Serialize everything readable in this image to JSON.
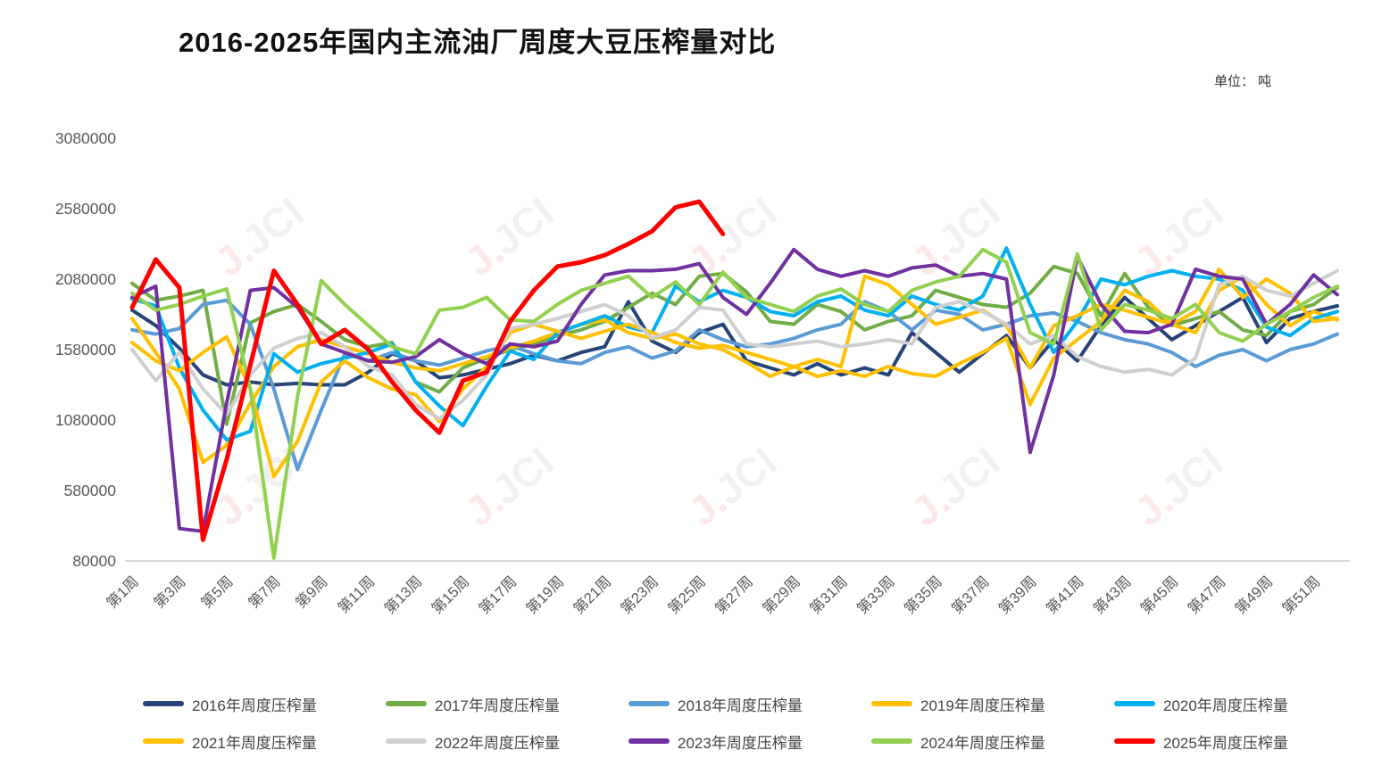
{
  "title": "2016-2025年国内主流油厂周度大豆压榨量对比",
  "unit_label": "单位： 吨",
  "watermark_text_red": "J.",
  "watermark_text_gray": "JCI",
  "chart_data": {
    "type": "line",
    "grid": false,
    "legend_position": "bottom",
    "ylim": [
      80000,
      3080000
    ],
    "y_ticks": [
      3080000,
      2580000,
      2080000,
      1580000,
      1080000,
      580000,
      80000
    ],
    "x_tick_labels": [
      "第1周",
      "第3周",
      "第5周",
      "第7周",
      "第9周",
      "第11周",
      "第13周",
      "第15周",
      "第17周",
      "第19周",
      "第21周",
      "第23周",
      "第25周",
      "第27周",
      "第29周",
      "第31周",
      "第33周",
      "第35周",
      "第37周",
      "第39周",
      "第41周",
      "第43周",
      "第45周",
      "第47周",
      "第49周",
      "第51周"
    ],
    "weeks_total": 52,
    "series": [
      {
        "name": "2016年周度压榨量",
        "color": "#264478",
        "values": [
          1860000,
          1750000,
          1590000,
          1400000,
          1330000,
          1350000,
          1330000,
          1340000,
          1330000,
          1330000,
          1420000,
          1550000,
          1500000,
          1380000,
          1400000,
          1440000,
          1480000,
          1540000,
          1500000,
          1560000,
          1600000,
          1920000,
          1640000,
          1560000,
          1700000,
          1760000,
          1500000,
          1450000,
          1400000,
          1480000,
          1400000,
          1450000,
          1400000,
          1700000,
          1560000,
          1420000,
          1550000,
          1680000,
          1450000,
          1650000,
          1500000,
          1750000,
          1950000,
          1800000,
          1650000,
          1750000,
          1850000,
          1950000,
          1630000,
          1800000,
          1850000,
          1890000
        ]
      },
      {
        "name": "2017年周度压榨量",
        "color": "#70AD47",
        "values": [
          2050000,
          1930000,
          1960000,
          2000000,
          1050000,
          1770000,
          1850000,
          1900000,
          1780000,
          1650000,
          1600000,
          1630000,
          1350000,
          1280000,
          1450000,
          1520000,
          1580000,
          1620000,
          1680000,
          1720000,
          1780000,
          1880000,
          1980000,
          1900000,
          2100000,
          2120000,
          1990000,
          1780000,
          1760000,
          1900000,
          1850000,
          1720000,
          1780000,
          1820000,
          2000000,
          1950000,
          1900000,
          1880000,
          1980000,
          2170000,
          2120000,
          1820000,
          2120000,
          1880000,
          1750000,
          1800000,
          1850000,
          1720000,
          1680000,
          1850000,
          1900000,
          2020000
        ]
      },
      {
        "name": "2018年周度压榨量",
        "color": "#5B9BD5",
        "values": [
          1720000,
          1690000,
          1730000,
          1900000,
          1930000,
          1760000,
          1300000,
          730000,
          1150000,
          1550000,
          1500000,
          1560000,
          1500000,
          1470000,
          1520000,
          1570000,
          1610000,
          1550000,
          1500000,
          1480000,
          1560000,
          1600000,
          1520000,
          1570000,
          1720000,
          1650000,
          1600000,
          1620000,
          1660000,
          1720000,
          1760000,
          1920000,
          1850000,
          1720000,
          1860000,
          1830000,
          1720000,
          1760000,
          1820000,
          1840000,
          1780000,
          1700000,
          1650000,
          1620000,
          1560000,
          1460000,
          1540000,
          1580000,
          1500000,
          1580000,
          1620000,
          1690000
        ]
      },
      {
        "name": "2019年周度压榨量",
        "color": "#FFC000",
        "values": [
          1800000,
          1560000,
          1300000,
          780000,
          900000,
          1200000,
          1460000,
          1600000,
          1650000,
          1600000,
          1550000,
          1490000,
          1450000,
          1430000,
          1480000,
          1530000,
          1590000,
          1640000,
          1700000,
          1760000,
          1790000,
          1700000,
          1660000,
          1690000,
          1620000,
          1580000,
          1490000,
          1390000,
          1460000,
          1390000,
          1430000,
          1390000,
          1460000,
          1410000,
          1390000,
          1480000,
          1560000,
          1660000,
          1190000,
          1520000,
          1650000,
          1780000,
          2000000,
          1920000,
          1760000,
          1700000,
          2000000,
          2100000,
          1900000,
          1750000,
          1850000,
          1790000
        ]
      },
      {
        "name": "2020年周度压榨量",
        "color": "#00B0F0",
        "values": [
          1940000,
          1890000,
          1450000,
          1150000,
          940000,
          1000000,
          1550000,
          1420000,
          1480000,
          1520000,
          1560000,
          1620000,
          1350000,
          1180000,
          1040000,
          1320000,
          1570000,
          1510000,
          1700000,
          1760000,
          1820000,
          1740000,
          1700000,
          2030000,
          1920000,
          2000000,
          1950000,
          1850000,
          1820000,
          1920000,
          1960000,
          1860000,
          1820000,
          1960000,
          1900000,
          1860000,
          1960000,
          2300000,
          1900000,
          1560000,
          1780000,
          2080000,
          2040000,
          2100000,
          2140000,
          2100000,
          2080000,
          2000000,
          1740000,
          1680000,
          1800000,
          1850000
        ]
      },
      {
        "name": "2021年周度压榨量",
        "color": "#FFC000",
        "values": [
          1630000,
          1500000,
          1430000,
          1560000,
          1670000,
          1300000,
          680000,
          930000,
          1350000,
          1500000,
          1380000,
          1300000,
          1260000,
          1070000,
          1300000,
          1460000,
          1700000,
          1760000,
          1710000,
          1660000,
          1710000,
          1760000,
          1700000,
          1630000,
          1590000,
          1610000,
          1560000,
          1510000,
          1460000,
          1510000,
          1460000,
          2100000,
          2040000,
          1900000,
          1760000,
          1810000,
          1860000,
          1750000,
          1450000,
          1750000,
          1820000,
          1900000,
          1860000,
          1810000,
          1760000,
          1850000,
          2150000,
          1950000,
          2080000,
          1980000,
          1780000,
          1800000
        ]
      },
      {
        "name": "2022年周度压榨量",
        "color": "#CFCFCF",
        "values": [
          1580000,
          1360000,
          1560000,
          1300000,
          1120000,
          1400000,
          1590000,
          1660000,
          1700000,
          1600000,
          1460000,
          1400000,
          1190000,
          1090000,
          1220000,
          1400000,
          1730000,
          1760000,
          1800000,
          1850000,
          1900000,
          1820000,
          1660000,
          1720000,
          1880000,
          1860000,
          1620000,
          1600000,
          1620000,
          1640000,
          1600000,
          1620000,
          1650000,
          1620000,
          1880000,
          1920000,
          1850000,
          1760000,
          1620000,
          1680000,
          1530000,
          1460000,
          1420000,
          1440000,
          1400000,
          1520000,
          2040000,
          2100000,
          2000000,
          1960000,
          2050000,
          2140000
        ]
      },
      {
        "name": "2023年周度压榨量",
        "color": "#7030A0",
        "values": [
          1950000,
          2030000,
          310000,
          290000,
          1200000,
          2000000,
          2020000,
          1880000,
          1620000,
          1560000,
          1500000,
          1490000,
          1530000,
          1650000,
          1550000,
          1480000,
          1620000,
          1600000,
          1640000,
          1900000,
          2110000,
          2140000,
          2140000,
          2150000,
          2190000,
          1950000,
          1830000,
          2050000,
          2290000,
          2150000,
          2100000,
          2140000,
          2100000,
          2160000,
          2180000,
          2100000,
          2120000,
          2080000,
          850000,
          1400000,
          2240000,
          1900000,
          1710000,
          1700000,
          1760000,
          2150000,
          2100000,
          2080000,
          1760000,
          1900000,
          2110000,
          1970000
        ]
      },
      {
        "name": "2024年周度压榨量",
        "color": "#92D050",
        "values": [
          1980000,
          1860000,
          1900000,
          1960000,
          2010000,
          1300000,
          100000,
          1250000,
          2070000,
          1900000,
          1750000,
          1600000,
          1550000,
          1860000,
          1880000,
          1950000,
          1790000,
          1780000,
          1900000,
          2000000,
          2050000,
          2100000,
          1950000,
          2060000,
          1900000,
          2130000,
          1950000,
          1900000,
          1850000,
          1960000,
          2010000,
          1900000,
          1850000,
          2000000,
          2060000,
          2100000,
          2290000,
          2200000,
          1700000,
          1620000,
          2260000,
          1720000,
          1900000,
          1860000,
          1800000,
          1900000,
          1700000,
          1640000,
          1760000,
          1850000,
          1950000,
          2030000
        ]
      },
      {
        "name": "2025年周度压榨量",
        "color": "#FF0000",
        "values": [
          1880000,
          2220000,
          2020000,
          230000,
          800000,
          1470000,
          2140000,
          1900000,
          1620000,
          1720000,
          1580000,
          1350000,
          1150000,
          990000,
          1360000,
          1420000,
          1780000,
          2000000,
          2170000,
          2200000,
          2250000,
          2330000,
          2420000,
          2590000,
          2630000,
          2400000
        ]
      }
    ]
  }
}
